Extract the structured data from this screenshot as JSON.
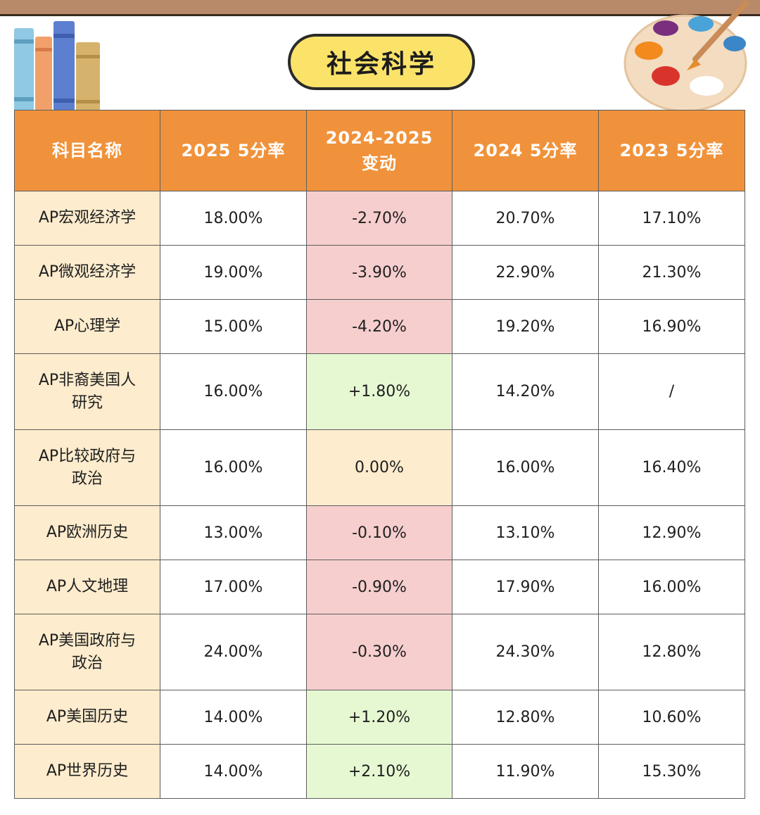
{
  "title": "社会科学",
  "headers": [
    "科目名称",
    "2025 5分率",
    "2024-2025\n变动",
    "2024 5分率",
    "2023 5分率"
  ],
  "rows": [
    {
      "subject": "AP宏观经济学",
      "r2025": "18.00%",
      "change": "-2.70%",
      "trend": "neg",
      "r2024": "20.70%",
      "r2023": "17.10%",
      "tall": false
    },
    {
      "subject": "AP微观经济学",
      "r2025": "19.00%",
      "change": "-3.90%",
      "trend": "neg",
      "r2024": "22.90%",
      "r2023": "21.30%",
      "tall": false
    },
    {
      "subject": "AP心理学",
      "r2025": "15.00%",
      "change": "-4.20%",
      "trend": "neg",
      "r2024": "19.20%",
      "r2023": "16.90%",
      "tall": false
    },
    {
      "subject": "AP非裔美国人\n研究",
      "r2025": "16.00%",
      "change": "+1.80%",
      "trend": "pos",
      "r2024": "14.20%",
      "r2023": "/",
      "tall": true
    },
    {
      "subject": "AP比较政府与\n政治",
      "r2025": "16.00%",
      "change": "0.00%",
      "trend": "zero",
      "r2024": "16.00%",
      "r2023": "16.40%",
      "tall": true
    },
    {
      "subject": "AP欧洲历史",
      "r2025": "13.00%",
      "change": "-0.10%",
      "trend": "neg",
      "r2024": "13.10%",
      "r2023": "12.90%",
      "tall": false
    },
    {
      "subject": "AP人文地理",
      "r2025": "17.00%",
      "change": "-0.90%",
      "trend": "neg",
      "r2024": "17.90%",
      "r2023": "16.00%",
      "tall": false
    },
    {
      "subject": "AP美国政府与\n政治",
      "r2025": "24.00%",
      "change": "-0.30%",
      "trend": "neg",
      "r2024": "24.30%",
      "r2023": "12.80%",
      "tall": true
    },
    {
      "subject": "AP美国历史",
      "r2025": "14.00%",
      "change": "+1.20%",
      "trend": "pos",
      "r2024": "12.80%",
      "r2023": "10.60%",
      "tall": false
    },
    {
      "subject": "AP世界历史",
      "r2025": "14.00%",
      "change": "+2.10%",
      "trend": "pos",
      "r2024": "11.90%",
      "r2023": "15.30%",
      "tall": false
    }
  ],
  "colors": {
    "header_bg": "#f0923b",
    "subject_bg": "#fdeccd",
    "negative_bg": "#f6cece",
    "positive_bg": "#e6f8d2",
    "rate_2025_text": "#2b2f8c",
    "title_pill": "#fbe36a"
  },
  "icons": [
    "books-icon",
    "palette-icon",
    "star-icon"
  ]
}
